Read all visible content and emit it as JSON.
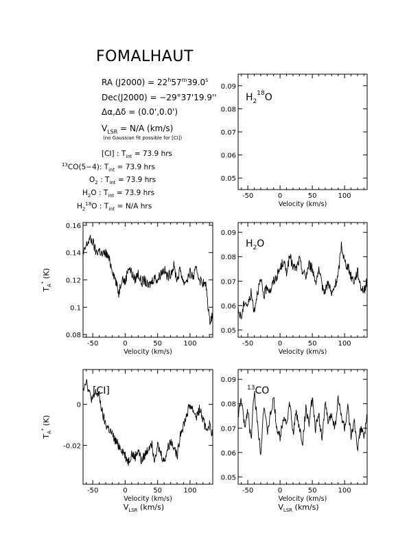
{
  "header": {
    "title": "FOMALHAUT",
    "ra_label": "RA (J2000) = ",
    "ra_h": "22",
    "ra_h_unit": "h",
    "ra_m": "57",
    "ra_m_unit": "m",
    "ra_s": "39.0",
    "ra_s_unit": "s",
    "dec_label": "Dec(J2000) = ",
    "dec_value": "−29°37'19.9''",
    "offset_label": "Δα,Δδ = ",
    "offset_value": "(0.0',0.0')",
    "vlsr_label": "V",
    "vlsr_sub": "LSR",
    "vlsr_value": " = N/A  (km/s)",
    "note": "(no Gaussian fit possible for [CI])"
  },
  "integration_times": [
    {
      "species": "[CI] : T",
      "sub": "int",
      "value": " = 73.9 hrs"
    },
    {
      "species_sup": "13",
      "species": "CO(5−4): T",
      "sub": "int",
      "value": " = 73.9 hrs"
    },
    {
      "species": "O",
      "species_sub": "2",
      "species_tail": " : T",
      "sub": "int",
      "value": " = 73.9 hrs"
    },
    {
      "species": "H",
      "species_sub": "2",
      "species_tail": "O : T",
      "sub": "int",
      "value": " = 73.9 hrs"
    },
    {
      "species": "H",
      "species_sub": "2",
      "species_sup": "18",
      "species_tail": "O : T",
      "sub": "int",
      "value": " = N/A  hrs"
    }
  ],
  "chart_data": [
    {
      "type": "line",
      "panel": "h2-18o",
      "label": "H218O",
      "label_parts": {
        "a": "H",
        "b_sub": "2",
        "c_sup": "18",
        "d": "O"
      },
      "xlabel": "Velocity (km/s)",
      "ylabel": "",
      "xlim": [
        -65,
        135
      ],
      "ylim": [
        0.045,
        0.095
      ],
      "xticks": [
        "-50",
        "0",
        "50",
        "100"
      ],
      "xtick_values": [
        -50,
        0,
        50,
        100
      ],
      "yticks": [
        "0.05",
        "0.06",
        "0.07",
        "0.08",
        "0.09"
      ],
      "ytick_values": [
        0.05,
        0.06,
        0.07,
        0.08,
        0.09
      ],
      "series": []
    },
    {
      "type": "line",
      "panel": "ci",
      "label": "[CI]",
      "xlabel": "Velocity (km/s)",
      "ylabel": "T",
      "xlim": [
        -65,
        135
      ],
      "ylim": [
        0.078,
        0.162
      ],
      "xticks": [
        "-50",
        "0",
        "50",
        "100"
      ],
      "xtick_values": [
        -50,
        0,
        50,
        100
      ],
      "yticks": [
        "0.08",
        "0.1",
        "0.12",
        "0.14",
        "0.16"
      ],
      "ytick_values": [
        0.08,
        0.1,
        0.12,
        0.14,
        0.16
      ],
      "series": [
        {
          "x": [
            -65,
            -60,
            -55,
            -50,
            -45,
            -40,
            -35,
            -30,
            -25,
            -20,
            -15,
            -10,
            -5,
            0,
            5,
            10,
            15,
            20,
            25,
            30,
            35,
            40,
            45,
            50,
            55,
            60,
            65,
            70,
            75,
            80,
            85,
            90,
            95,
            100,
            105,
            110,
            115,
            120,
            125,
            130,
            135
          ],
          "y": [
            0.138,
            0.145,
            0.15,
            0.148,
            0.14,
            0.142,
            0.138,
            0.14,
            0.135,
            0.128,
            0.12,
            0.11,
            0.122,
            0.118,
            0.13,
            0.125,
            0.12,
            0.125,
            0.118,
            0.12,
            0.115,
            0.118,
            0.122,
            0.12,
            0.125,
            0.128,
            0.122,
            0.125,
            0.13,
            0.12,
            0.128,
            0.118,
            0.12,
            0.125,
            0.122,
            0.128,
            0.12,
            0.118,
            0.115,
            0.09,
            0.095
          ]
        }
      ]
    },
    {
      "type": "line",
      "panel": "h2o",
      "label": "H2O",
      "label_parts": {
        "a": "H",
        "b_sub": "2",
        "c": "O"
      },
      "xlabel": "Velocity (km/s)",
      "ylabel": "",
      "xlim": [
        -65,
        135
      ],
      "ylim": [
        0.047,
        0.094
      ],
      "xticks": [
        "-50",
        "0",
        "50",
        "100"
      ],
      "xtick_values": [
        -50,
        0,
        50,
        100
      ],
      "yticks": [
        "0.05",
        "0.06",
        "0.07",
        "0.08",
        "0.09"
      ],
      "ytick_values": [
        0.05,
        0.06,
        0.07,
        0.08,
        0.09
      ],
      "series": [
        {
          "x": [
            -65,
            -60,
            -55,
            -50,
            -45,
            -40,
            -35,
            -30,
            -25,
            -20,
            -15,
            -10,
            -5,
            0,
            5,
            10,
            15,
            20,
            25,
            30,
            35,
            40,
            45,
            50,
            55,
            60,
            65,
            70,
            75,
            80,
            85,
            90,
            95,
            100,
            105,
            110,
            115,
            120,
            125,
            130,
            135
          ],
          "y": [
            0.058,
            0.055,
            0.062,
            0.06,
            0.065,
            0.058,
            0.066,
            0.07,
            0.064,
            0.068,
            0.066,
            0.07,
            0.072,
            0.075,
            0.078,
            0.074,
            0.08,
            0.076,
            0.075,
            0.079,
            0.074,
            0.072,
            0.077,
            0.075,
            0.07,
            0.074,
            0.068,
            0.066,
            0.07,
            0.064,
            0.068,
            0.072,
            0.085,
            0.078,
            0.076,
            0.072,
            0.07,
            0.074,
            0.068,
            0.066,
            0.07
          ]
        }
      ]
    },
    {
      "type": "line",
      "panel": "ci-lsr",
      "label": "[CI]",
      "xlabel": "Velocity (km/s)",
      "xlabel2": "V",
      "xlabel2_sub": "LSR",
      "xlabel2_tail": " (km/s)",
      "ylabel": "T",
      "xlim": [
        -65,
        135
      ],
      "ylim": [
        -0.039,
        0.017
      ],
      "xticks": [
        "-50",
        "0",
        "50",
        "100"
      ],
      "xtick_values": [
        -50,
        0,
        50,
        100
      ],
      "yticks": [
        "0",
        "-0.02"
      ],
      "ytick_values": [
        0,
        -0.02
      ],
      "series": [
        {
          "x": [
            -65,
            -60,
            -55,
            -50,
            -45,
            -40,
            -35,
            -30,
            -25,
            -20,
            -15,
            -10,
            -5,
            0,
            5,
            10,
            15,
            20,
            25,
            30,
            35,
            40,
            45,
            50,
            55,
            60,
            65,
            70,
            75,
            80,
            85,
            90,
            95,
            100,
            105,
            110,
            115,
            120,
            125,
            130,
            135
          ],
          "y": [
            0.008,
            0.012,
            0.005,
            0.002,
            0.006,
            0.004,
            -0.005,
            -0.01,
            -0.012,
            -0.015,
            -0.018,
            -0.02,
            -0.022,
            -0.025,
            -0.028,
            -0.024,
            -0.026,
            -0.022,
            -0.028,
            -0.025,
            -0.022,
            -0.018,
            -0.026,
            -0.02,
            -0.024,
            -0.028,
            -0.022,
            -0.018,
            -0.02,
            -0.026,
            -0.014,
            -0.01,
            -0.005,
            0.0,
            -0.003,
            -0.006,
            -0.002,
            -0.008,
            -0.012,
            -0.01,
            -0.015
          ]
        }
      ]
    },
    {
      "type": "line",
      "panel": "13co",
      "label": "13CO",
      "label_parts": {
        "a_sup": "13",
        "b": "CO"
      },
      "xlabel": "Velocity (km/s)",
      "xlabel2": "V",
      "xlabel2_sub": "LSR",
      "xlabel2_tail": " (km/s)",
      "ylabel": "",
      "xlim": [
        -65,
        135
      ],
      "ylim": [
        0.047,
        0.094
      ],
      "xticks": [
        "-50",
        "0",
        "50",
        "100"
      ],
      "xtick_values": [
        -50,
        0,
        50,
        100
      ],
      "yticks": [
        "0.05",
        "0.06",
        "0.07",
        "0.08",
        "0.09"
      ],
      "ytick_values": [
        0.05,
        0.06,
        0.07,
        0.08,
        0.09
      ],
      "series": [
        {
          "x": [
            -65,
            -60,
            -55,
            -50,
            -45,
            -40,
            -35,
            -30,
            -25,
            -20,
            -15,
            -10,
            -5,
            0,
            5,
            10,
            15,
            20,
            25,
            30,
            35,
            40,
            45,
            50,
            55,
            60,
            65,
            70,
            75,
            80,
            85,
            90,
            95,
            100,
            105,
            110,
            115,
            120,
            125,
            130,
            135
          ],
          "y": [
            0.075,
            0.082,
            0.07,
            0.078,
            0.065,
            0.085,
            0.072,
            0.06,
            0.08,
            0.068,
            0.075,
            0.082,
            0.07,
            0.066,
            0.075,
            0.072,
            0.08,
            0.068,
            0.076,
            0.07,
            0.064,
            0.078,
            0.072,
            0.082,
            0.07,
            0.075,
            0.066,
            0.08,
            0.072,
            0.076,
            0.07,
            0.082,
            0.075,
            0.07,
            0.078,
            0.066,
            0.072,
            0.062,
            0.07,
            0.066,
            0.075
          ]
        }
      ]
    }
  ]
}
